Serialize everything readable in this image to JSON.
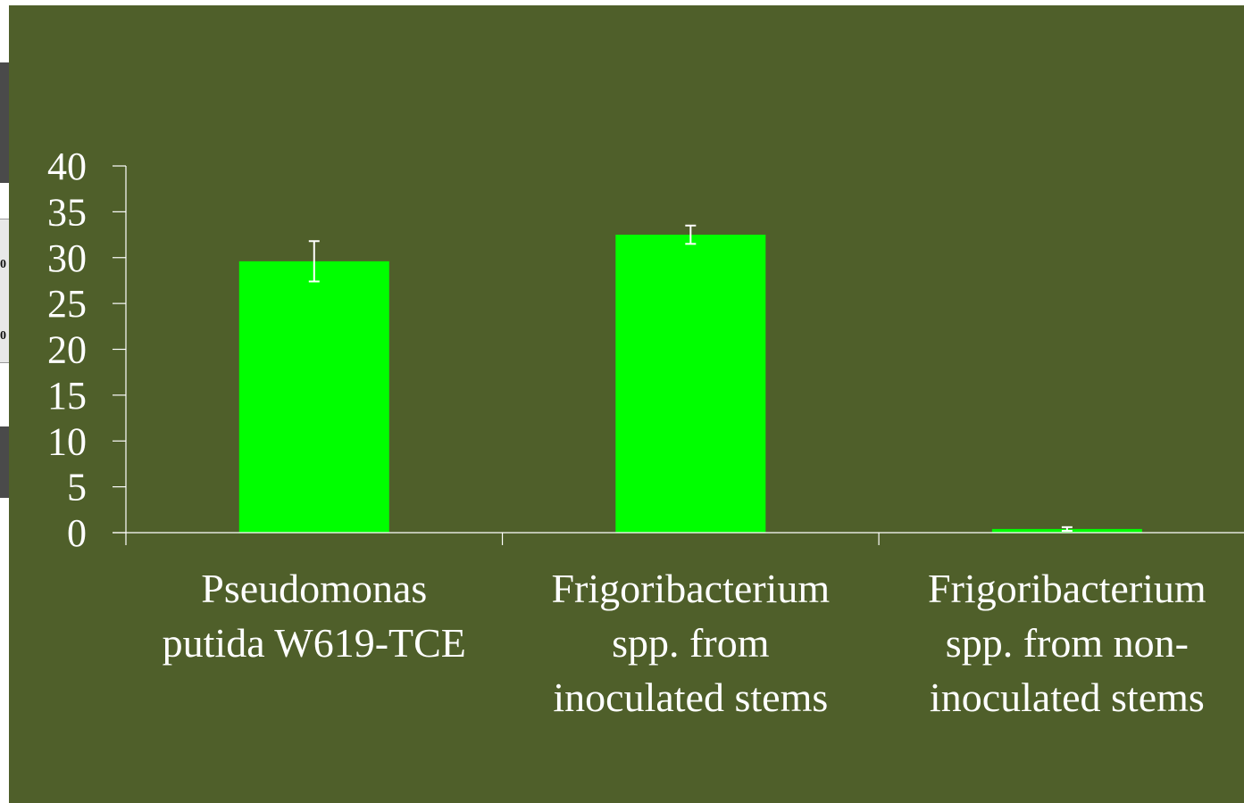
{
  "background_color": "#4f5f2a",
  "bar_color": "#00ff00",
  "axis_color": "#ffffff",
  "left_edge_fragments": [
    "0",
    "0"
  ],
  "chart_data": {
    "type": "bar",
    "categories": [
      [
        "Pseudomonas",
        "putida W619-TCE"
      ],
      [
        "Frigoribacterium",
        "spp. from",
        "inoculated stems"
      ],
      [
        "Frigoribacterium",
        "spp. from non-",
        "inoculated stems"
      ]
    ],
    "values": [
      29.6,
      32.5,
      0.4
    ],
    "error": [
      2.2,
      1.0,
      0.2
    ],
    "ylim": [
      0,
      40
    ],
    "yticks": [
      0,
      5,
      10,
      15,
      20,
      25,
      30,
      35,
      40
    ],
    "title": "",
    "xlabel": "",
    "ylabel": "",
    "grid": false,
    "legend": "none"
  }
}
